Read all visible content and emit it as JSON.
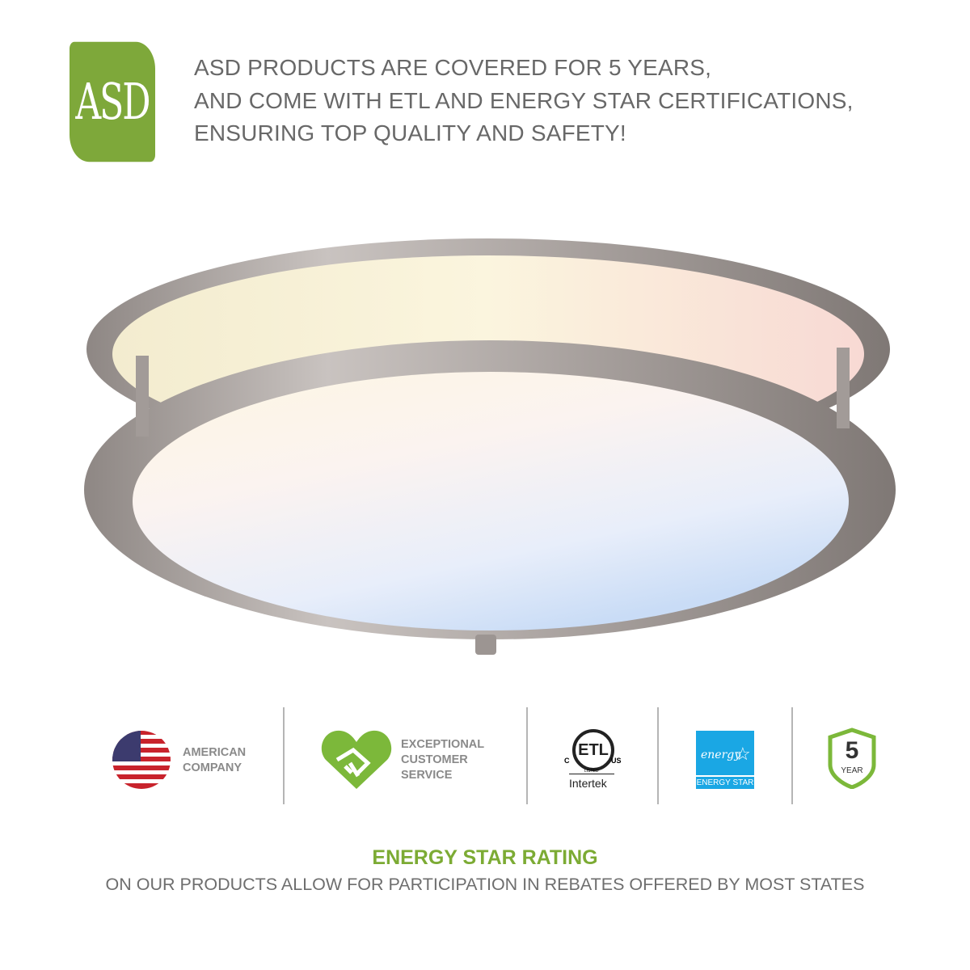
{
  "brand": {
    "logo_text": "ASD",
    "color": "#7ea83a"
  },
  "header": {
    "lines": [
      "ASD PRODUCTS ARE COVERED FOR 5 YEARS,",
      "AND COME WITH ETL AND ENERGY STAR CERTIFICATIONS,",
      "ENSURING TOP QUALITY AND SAFETY!"
    ]
  },
  "badges": [
    {
      "icon": "us-flag-icon",
      "lines": [
        "AMERICAN",
        "COMPANY"
      ]
    },
    {
      "icon": "heart-handshake-icon",
      "lines": [
        "EXCEPTIONAL",
        "CUSTOMER",
        "SERVICE"
      ]
    },
    {
      "icon": "etl-listed-icon",
      "logo_text": "ETL",
      "c": "C",
      "us": "US",
      "listed": "LISTED",
      "caption": "Intertek"
    },
    {
      "icon": "energy-star-icon",
      "script": "energy",
      "caption": "ENERGY STAR"
    },
    {
      "icon": "shield-icon",
      "number": "5",
      "caption": "YEAR"
    }
  ],
  "footer": {
    "title": "ENERGY STAR RATING",
    "subtitle": "ON OUR PRODUCTS ALLOW FOR PARTICIPATION IN REBATES OFFERED BY MOST STATES"
  },
  "colors": {
    "accent": "#7cab34",
    "text": "#686868",
    "energy_star": "#1aa7e4"
  }
}
